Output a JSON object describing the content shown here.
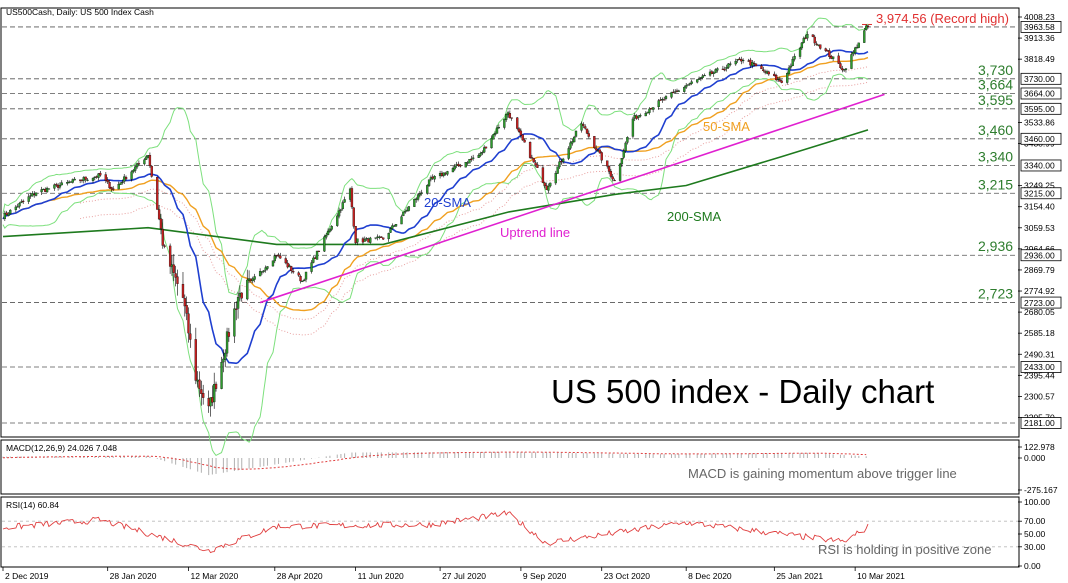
{
  "header": {
    "title": "US500Cash, Daily:  US 500 Index Cash"
  },
  "overlay": {
    "big_title": "US 500 index - Daily chart",
    "record_high": "3,974.56 (Record high)",
    "sma20_label": "20-SMA",
    "sma50_label": "50-SMA",
    "sma200_label": "200-SMA",
    "uptrend_label": "Uptrend line",
    "macd_note": "MACD is gaining momentum above trigger line",
    "rsi_note": "RSI is holding in positive zone"
  },
  "colors": {
    "bull": "#2e9a2e",
    "bear": "#c42020",
    "sma20": "#1f3fd0",
    "sma50": "#f0a020",
    "sma200": "#1e7a1e",
    "uptrend": "#e020d0",
    "bollinger": "#7de07d",
    "ichimoku": "#e8a0a0",
    "record": "#e03030",
    "level_text": "#2e7d2e",
    "macd_hist": "#b0b0b0",
    "macd_signal": "#e04040",
    "rsi_line": "#e04040"
  },
  "chart_data": [
    {
      "type": "candlestick",
      "title": "US500Cash, Daily:  US 500 Index Cash",
      "ylim": [
        2181,
        4008.23
      ],
      "y_ticks": [
        "4008.23",
        "3913.36",
        "3818.49",
        "3533.86",
        "3438.99",
        "3249.25",
        "3154.40",
        "3059.53",
        "2964.66",
        "2869.79",
        "2774.92",
        "2680.05",
        "2585.18",
        "2490.31",
        "2395.44",
        "2300.57",
        "2205.70"
      ],
      "price_boxes": [
        "3963.58",
        "3730.00",
        "3664.00",
        "3595.00",
        "3460.00",
        "3340.00",
        "3215.00",
        "2936.00",
        "2723.00",
        "2433.00",
        "2181.00"
      ],
      "levels": [
        {
          "value": 3730,
          "label": "3,730"
        },
        {
          "value": 3664,
          "label": "3,664"
        },
        {
          "value": 3595,
          "label": "3,595"
        },
        {
          "value": 3460,
          "label": "3,460"
        },
        {
          "value": 3340,
          "label": "3,340"
        },
        {
          "value": 3215,
          "label": "3,215"
        },
        {
          "value": 2936,
          "label": "2,936"
        },
        {
          "value": 2723,
          "label": "2,723"
        }
      ],
      "x_labels": [
        "2 Dec 2019",
        "28 Jan 2020",
        "12 Mar 2020",
        "28 Apr 2020",
        "11 Jun 2020",
        "27 Jul 2020",
        "9 Sep 2020",
        "23 Oct 2020",
        "8 Dec 2020",
        "25 Jan 2021",
        "10 Mar 2021"
      ],
      "close_path": [
        [
          "2019-12-02",
          3110
        ],
        [
          "2019-12-20",
          3220
        ],
        [
          "2020-01-10",
          3270
        ],
        [
          "2020-01-24",
          3295
        ],
        [
          "2020-01-31",
          3230
        ],
        [
          "2020-02-19",
          3390
        ],
        [
          "2020-02-28",
          2950
        ],
        [
          "2020-03-09",
          2745
        ],
        [
          "2020-03-16",
          2390
        ],
        [
          "2020-03-23",
          2237
        ],
        [
          "2020-04-08",
          2750
        ],
        [
          "2020-04-29",
          2940
        ],
        [
          "2020-05-13",
          2820
        ],
        [
          "2020-06-08",
          3230
        ],
        [
          "2020-06-11",
          3000
        ],
        [
          "2020-06-26",
          3010
        ],
        [
          "2020-07-22",
          3275
        ],
        [
          "2020-08-18",
          3390
        ],
        [
          "2020-09-02",
          3580
        ],
        [
          "2020-09-23",
          3240
        ],
        [
          "2020-10-12",
          3530
        ],
        [
          "2020-10-30",
          3270
        ],
        [
          "2020-11-09",
          3550
        ],
        [
          "2020-12-08",
          3700
        ],
        [
          "2021-01-08",
          3820
        ],
        [
          "2021-01-29",
          3715
        ],
        [
          "2021-02-12",
          3935
        ],
        [
          "2021-03-04",
          3770
        ],
        [
          "2021-03-17",
          3974
        ]
      ],
      "series": [
        {
          "name": "20-SMA"
        },
        {
          "name": "50-SMA"
        },
        {
          "name": "200-SMA"
        },
        {
          "name": "Uptrend line",
          "x": [
            "2020-04-20",
            "2021-03-26"
          ],
          "values": [
            2723,
            3660
          ]
        }
      ],
      "record_high": 3974.56
    },
    {
      "type": "line",
      "title": "MACD(12,26,9) 24.026 7.048",
      "y_ticks": [
        "122.978",
        "0.000",
        "-275.167"
      ],
      "series": [
        {
          "name": "MACD",
          "x": [
            "2019-12-02",
            "2020-02-19",
            "2020-03-23",
            "2020-06-08",
            "2020-09-02",
            "2020-11-20",
            "2021-02-12",
            "2021-03-17"
          ],
          "values": [
            20,
            30,
            -250,
            80,
            90,
            55,
            75,
            24.026
          ]
        },
        {
          "name": "Signal",
          "values": [
            7.048
          ]
        }
      ]
    },
    {
      "type": "line",
      "title": "RSI(14) 60.84",
      "ylim": [
        0,
        100
      ],
      "y_ticks": [
        "100.00",
        "70.00",
        "50.00",
        "30.00",
        "0.00"
      ],
      "series": [
        {
          "name": "RSI",
          "x": [
            "2019-12-02",
            "2020-01-24",
            "2020-03-23",
            "2020-04-29",
            "2020-07-22",
            "2020-09-02",
            "2020-09-23",
            "2020-12-08",
            "2021-03-04",
            "2021-03-17"
          ],
          "values": [
            60,
            72,
            24,
            62,
            65,
            82,
            36,
            68,
            38,
            60.84
          ]
        }
      ]
    }
  ]
}
